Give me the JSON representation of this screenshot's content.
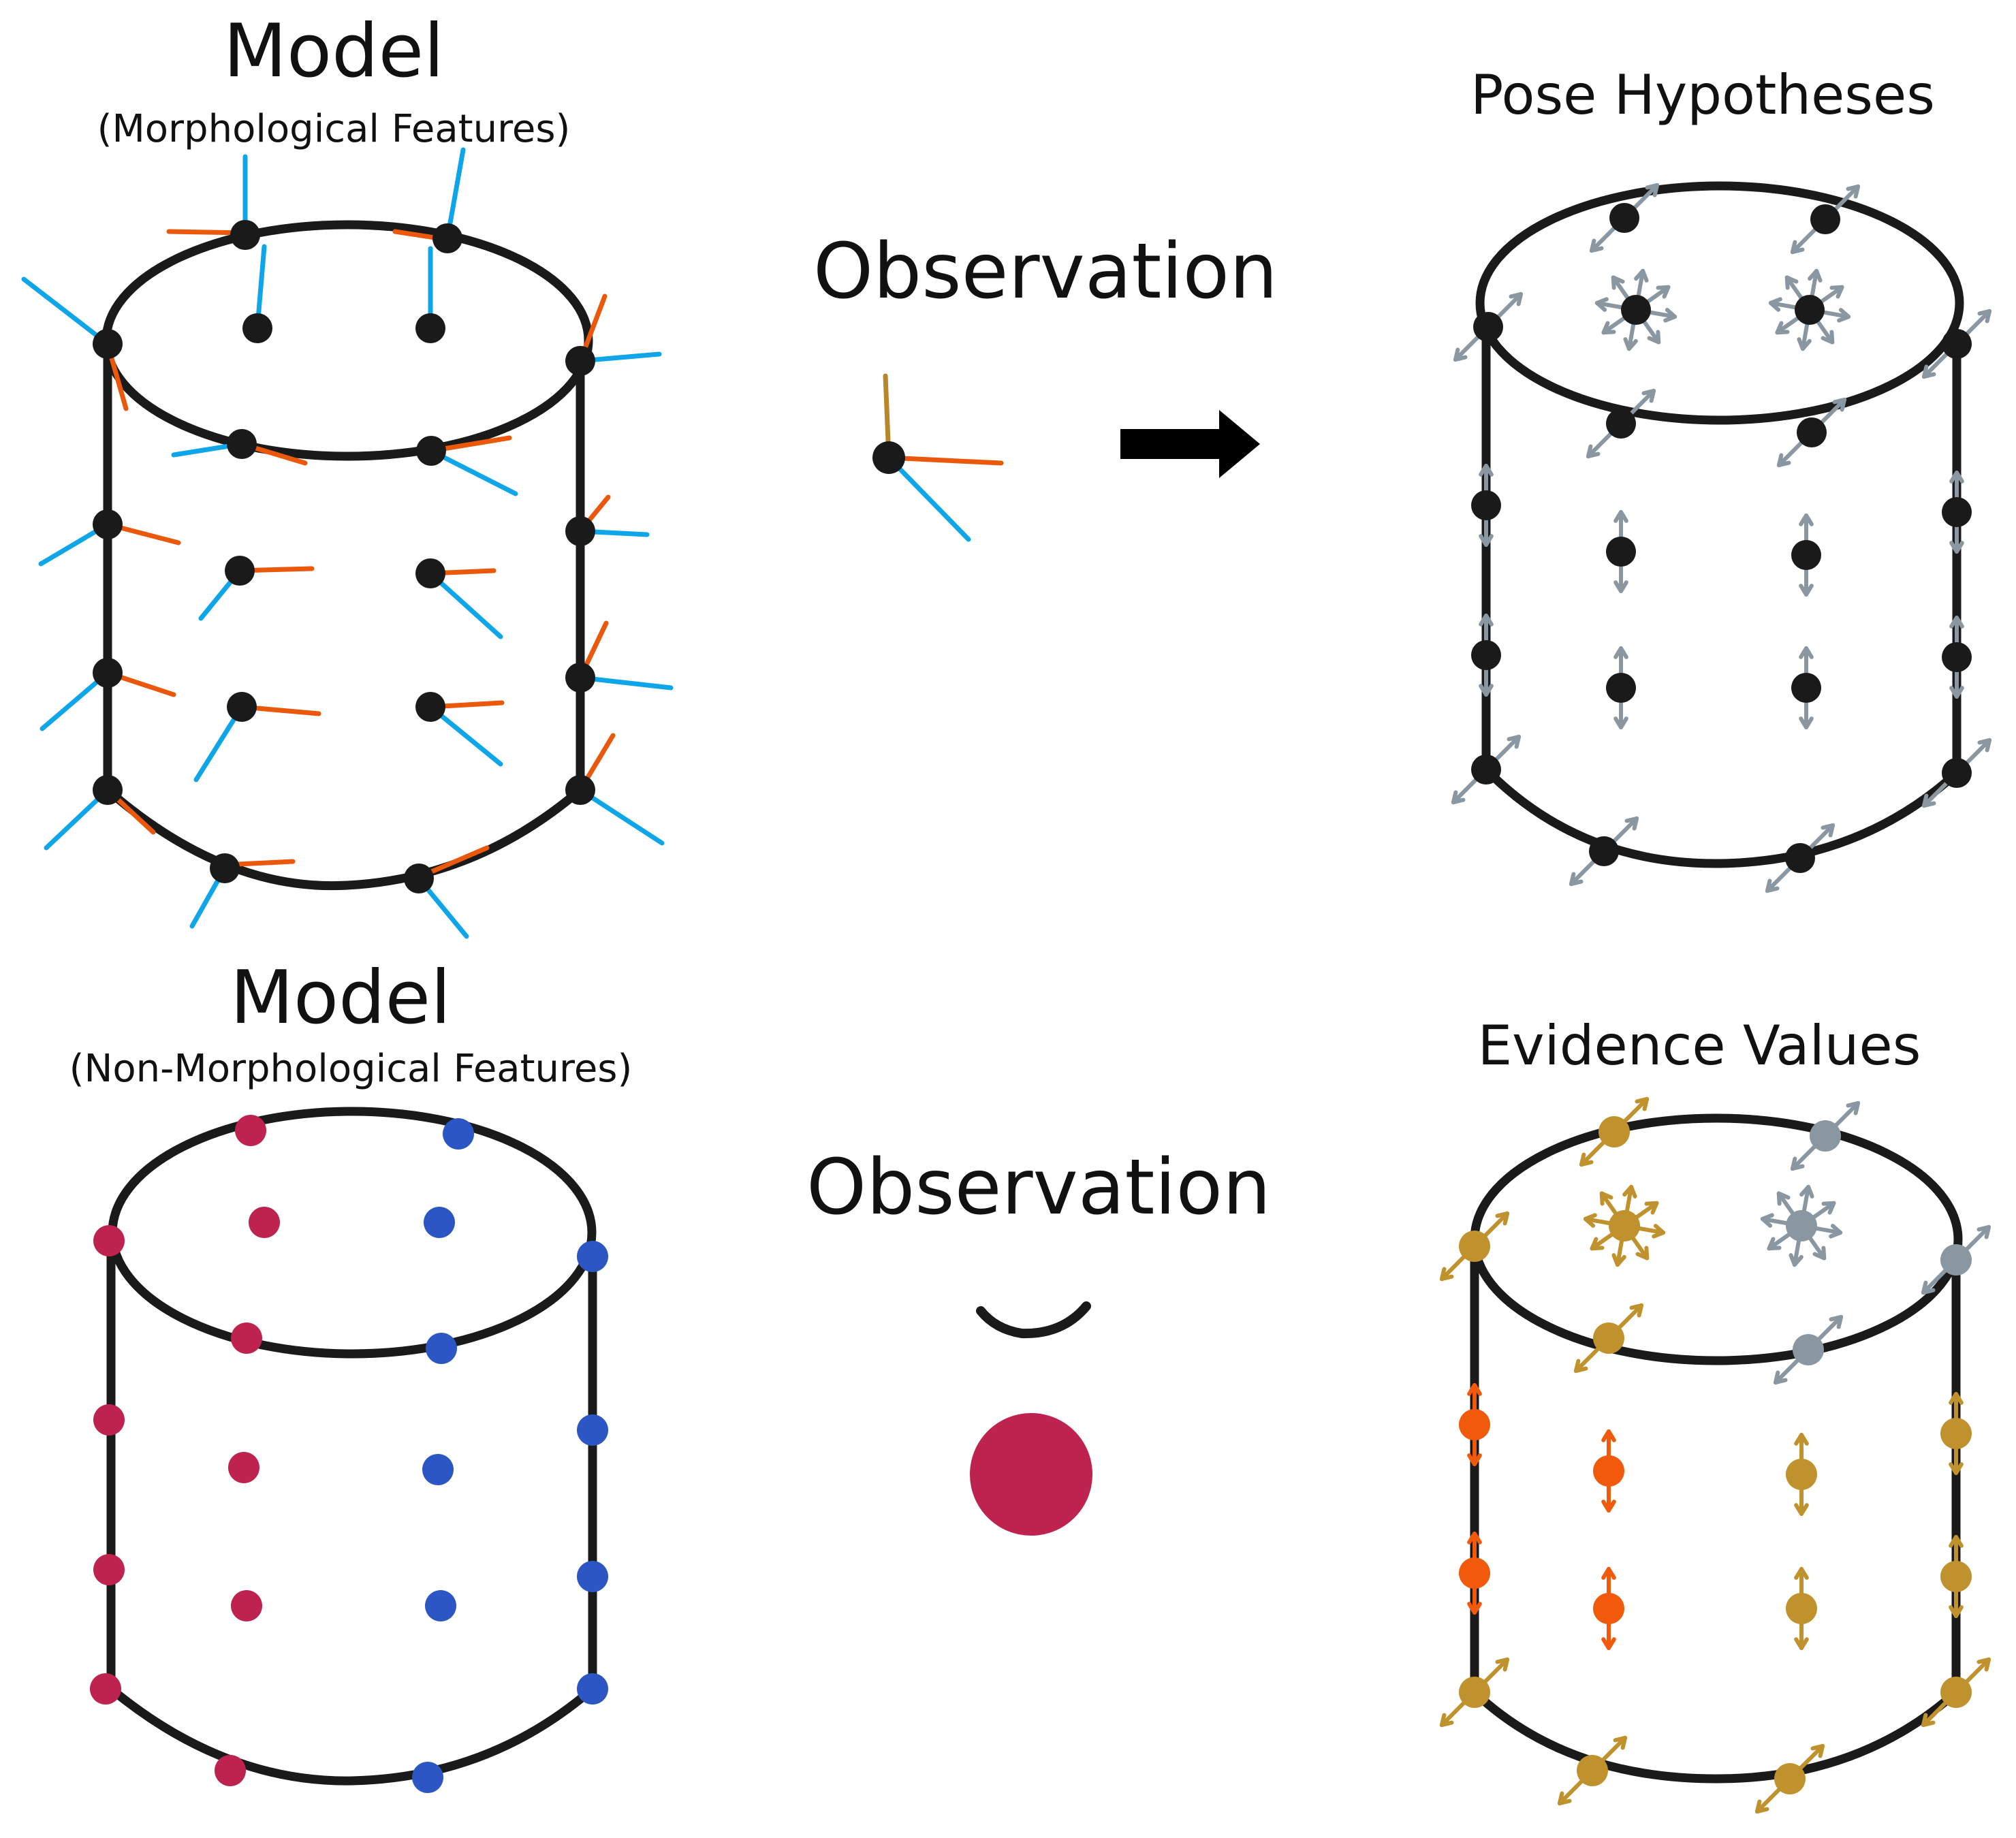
{
  "panels": {
    "model_morph": {
      "title": "Model",
      "subtitle": "(Morphological Features)"
    },
    "observation_top": {
      "title": "Observation"
    },
    "pose_hypotheses": {
      "title": "Pose Hypotheses"
    },
    "model_nonmorph": {
      "title": "Model",
      "subtitle": "(Non-Morphological Features)"
    },
    "observation_bottom": {
      "title": "Observation"
    },
    "evidence_values": {
      "title": "Evidence Values"
    }
  },
  "colors": {
    "outline": "#1a1a1a",
    "point": "#1a1a1a",
    "surface_normal": "#0ea5e9",
    "curvature_direction": "#ea580c",
    "observation_axis": "#b8862b",
    "hypothesis_arrow": "#8a96a0",
    "feature_red": "#be2350",
    "feature_blue": "#2b56c4",
    "evidence_high": "#f05a0a",
    "evidence_mid": "#c0922e",
    "evidence_low": "#8a96a0"
  },
  "icons": {
    "transition": "right-arrow-icon",
    "observed_curvature": "curve-icon",
    "observed_color": "color-dot-icon"
  }
}
